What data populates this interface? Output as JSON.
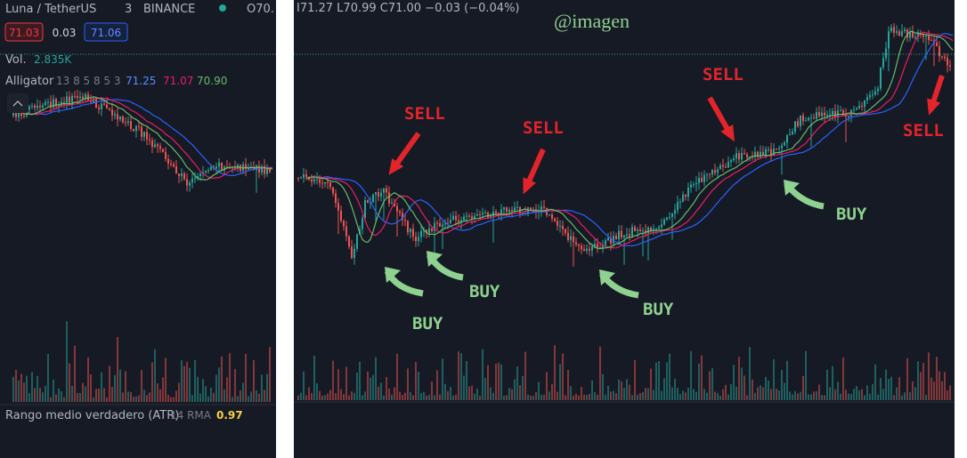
{
  "left_panel": {
    "symbol": "Luna / TetherUS",
    "interval": "3",
    "exchange": "BINANCE",
    "open": "O70.",
    "price_boxes": [
      "71.03",
      "0.03",
      "71.06"
    ],
    "volume": {
      "label": "Vol.",
      "value": "2.835K"
    },
    "alligator": {
      "label": "Alligator",
      "params": "13 8 5 8 5 3",
      "values": [
        "71.25",
        "71.07",
        "70.90"
      ]
    },
    "atr": {
      "label": "Rango medio verdadero (ATR)",
      "params": "14 RMA",
      "value": "0.97"
    }
  },
  "right_panel": {
    "ohlc": "I71.27 L70.99 C71.00 −0.03 (−0.04%)",
    "watermark": "@imagen",
    "annotations": [
      "SELL",
      "SELL",
      "SELL",
      "SELL",
      "BUY",
      "BUY",
      "BUY",
      "BUY"
    ]
  }
}
